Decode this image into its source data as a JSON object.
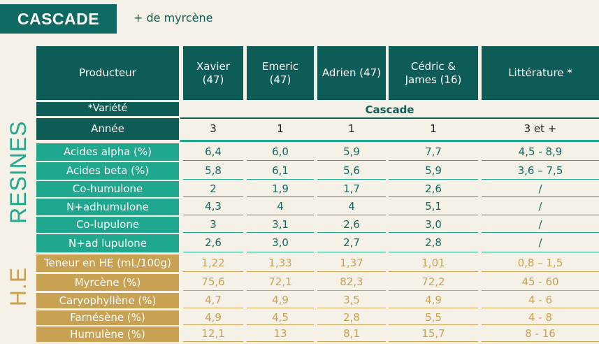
{
  "title": "CASCADE",
  "subtitle": "+ de myrcène",
  "section_labels": {
    "resines": "RESINES",
    "he": "H.E"
  },
  "header": {
    "first": "Producteur",
    "producers": [
      "Xavier (47)",
      "Emeric (47)",
      "Adrien (47)",
      "Cédric & James (16)",
      "Littérature *"
    ]
  },
  "variety": {
    "label": "*Variété",
    "value": "Cascade"
  },
  "year": {
    "label": "Année",
    "values": [
      "3",
      "1",
      "1",
      "1",
      "3 et +"
    ]
  },
  "resines": [
    {
      "label": "Acides alpha (%)",
      "values": [
        "6,4",
        "6,0",
        "5,9",
        "7,7",
        "4,5 - 8,9"
      ]
    },
    {
      "label": "Acides beta (%)",
      "values": [
        "5,8",
        "6,1",
        "5,6",
        "5,9",
        "3,6 – 7,5"
      ]
    },
    {
      "label": "Co-humulone",
      "values": [
        "2",
        "1,9",
        "1,7",
        "2,6",
        "/"
      ]
    },
    {
      "label": "N+adhumulone",
      "values": [
        "4,3",
        "4",
        "4",
        "5,1",
        "/"
      ]
    },
    {
      "label": "Co-lupulone",
      "values": [
        "3",
        "3,1",
        "2,6",
        "3,0",
        "/"
      ]
    },
    {
      "label": "N+ad lupulone",
      "values": [
        "2,6",
        "3,0",
        "2,7",
        "2,8",
        "/"
      ]
    }
  ],
  "he": [
    {
      "label": "Teneur en HE (mL/100g)",
      "values": [
        "1,22",
        "1,33",
        "1,37",
        "1,01",
        "0,8 – 1,5"
      ]
    },
    {
      "label": "Myrcène (%)",
      "values": [
        "75,6",
        "72,1",
        "82,3",
        "72,2",
        "45 - 60"
      ]
    },
    {
      "label": "Caryophyllène (%)",
      "values": [
        "4,7",
        "4,9",
        "3,5",
        "4,9",
        "4 - 6"
      ]
    },
    {
      "label": "Farnésène (%)",
      "values": [
        "4,9",
        "4,5",
        "2,8",
        "5,5",
        "4 - 8"
      ]
    },
    {
      "label": "Humulène (%)",
      "values": [
        "12,1",
        "13",
        "8,1",
        "15,7",
        "8 - 16"
      ]
    }
  ],
  "colors": {
    "dark_teal": "#0e5c57",
    "green": "#1fa88d",
    "tan": "#c9a153",
    "background": "#f5f1e6"
  }
}
